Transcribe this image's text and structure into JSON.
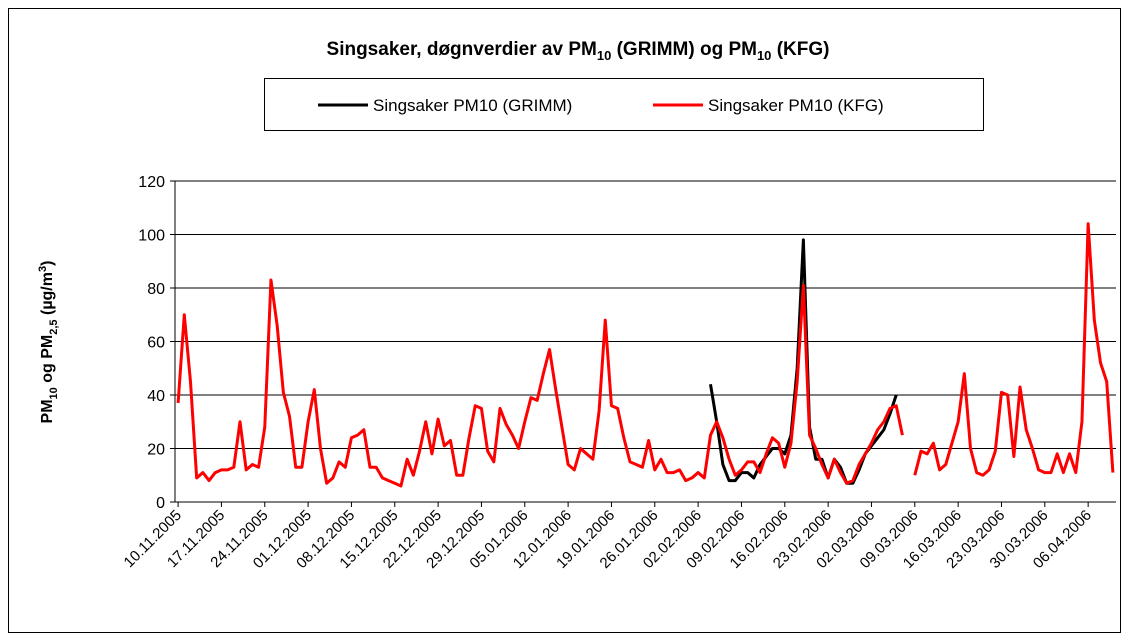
{
  "chart_data": {
    "type": "line",
    "title": [
      "Singsaker, døgnverdier av PM",
      "10",
      " (GRIMM) og PM",
      "10",
      " (KFG)"
    ],
    "y_label": [
      "PM",
      "10",
      " og PM",
      "2,5",
      " (µg/m",
      "3",
      ")"
    ],
    "ylim": [
      0,
      120
    ],
    "yticks": [
      0,
      20,
      40,
      60,
      80,
      100,
      120
    ],
    "grid": true,
    "categories": [
      "10.11.2005",
      null,
      null,
      null,
      null,
      null,
      null,
      "17.11.2005",
      null,
      null,
      null,
      null,
      null,
      null,
      "24.11.2005",
      null,
      null,
      null,
      null,
      null,
      null,
      "01.12.2005",
      null,
      null,
      null,
      null,
      null,
      null,
      "08.12.2005",
      null,
      null,
      null,
      null,
      null,
      null,
      "15.12.2005",
      null,
      null,
      null,
      null,
      null,
      null,
      "22.12.2005",
      null,
      null,
      null,
      null,
      null,
      null,
      "29.12.2005",
      null,
      null,
      null,
      null,
      null,
      null,
      "05.01.2006",
      null,
      null,
      null,
      null,
      null,
      null,
      "12.01.2006",
      null,
      null,
      null,
      null,
      null,
      null,
      "19.01.2006",
      null,
      null,
      null,
      null,
      null,
      null,
      "26.01.2006",
      null,
      null,
      null,
      null,
      null,
      null,
      "02.02.2006",
      null,
      null,
      null,
      null,
      null,
      null,
      "09.02.2006",
      null,
      null,
      null,
      null,
      null,
      null,
      "16.02.2006",
      null,
      null,
      null,
      null,
      null,
      null,
      "23.02.2006",
      null,
      null,
      null,
      null,
      null,
      null,
      "02.03.2006",
      null,
      null,
      null,
      null,
      null,
      null,
      "09.03.2006",
      null,
      null,
      null,
      null,
      null,
      null,
      "16.03.2006",
      null,
      null,
      null,
      null,
      null,
      null,
      "23.03.2006",
      null,
      null,
      null,
      null,
      null,
      null,
      "30.03.2006",
      null,
      null,
      null,
      null,
      null,
      null,
      "06.04.2006",
      null,
      null,
      null,
      null
    ],
    "series": [
      {
        "name": "Singsaker PM10 (GRIMM)",
        "color": "#000000",
        "values": [
          null,
          null,
          null,
          null,
          null,
          null,
          null,
          null,
          null,
          null,
          null,
          null,
          null,
          null,
          null,
          null,
          null,
          null,
          null,
          null,
          null,
          null,
          null,
          null,
          null,
          null,
          null,
          null,
          null,
          null,
          null,
          null,
          null,
          null,
          null,
          null,
          null,
          null,
          null,
          null,
          null,
          null,
          null,
          null,
          null,
          null,
          null,
          null,
          null,
          null,
          null,
          null,
          null,
          null,
          null,
          null,
          null,
          null,
          null,
          null,
          null,
          null,
          null,
          null,
          null,
          null,
          null,
          null,
          null,
          null,
          null,
          null,
          null,
          null,
          null,
          null,
          null,
          null,
          null,
          null,
          null,
          null,
          null,
          null,
          null,
          null,
          44,
          30,
          14,
          8,
          8,
          11,
          11,
          9,
          14,
          17,
          20,
          20,
          18,
          25,
          50,
          98,
          28,
          16,
          16,
          9,
          16,
          13,
          7,
          7,
          12,
          18,
          21,
          24,
          27,
          33,
          40,
          null,
          null,
          null,
          null,
          null,
          null,
          null,
          null,
          null,
          null,
          null,
          null,
          null,
          null,
          null,
          null,
          null,
          null,
          null,
          null,
          null,
          null,
          null,
          null,
          null,
          null,
          null,
          null,
          null,
          null,
          null,
          null,
          null,
          null,
          null
        ]
      },
      {
        "name": "Singsaker PM10 (KFG)",
        "color": "#ff0000",
        "values": [
          37,
          70,
          45,
          9,
          11,
          8,
          11,
          12,
          12,
          13,
          30,
          12,
          14,
          13,
          28,
          83,
          66,
          41,
          32,
          13,
          13,
          30,
          42,
          20,
          7,
          9,
          15,
          13,
          24,
          25,
          27,
          13,
          13,
          9,
          8,
          7,
          6,
          16,
          10,
          19,
          30,
          18,
          31,
          21,
          23,
          10,
          10,
          24,
          36,
          35,
          19,
          15,
          35,
          29,
          25,
          20,
          30,
          39,
          38,
          48,
          57,
          42,
          28,
          14,
          12,
          20,
          18,
          16,
          34,
          68,
          36,
          35,
          24,
          15,
          14,
          13,
          23,
          12,
          16,
          11,
          11,
          12,
          8,
          9,
          11,
          9,
          25,
          30,
          24,
          16,
          10,
          12,
          15,
          15,
          11,
          18,
          24,
          22,
          13,
          22,
          45,
          81,
          25,
          20,
          14,
          9,
          16,
          11,
          7,
          8,
          14,
          18,
          22,
          27,
          30,
          35,
          36,
          25,
          null,
          10,
          19,
          18,
          22,
          12,
          14,
          22,
          30,
          48,
          20,
          11,
          10,
          12,
          19,
          41,
          40,
          17,
          43,
          27,
          20,
          12,
          11,
          11,
          18,
          11,
          18,
          11,
          30,
          104,
          68,
          52,
          45,
          11
        ]
      }
    ]
  }
}
